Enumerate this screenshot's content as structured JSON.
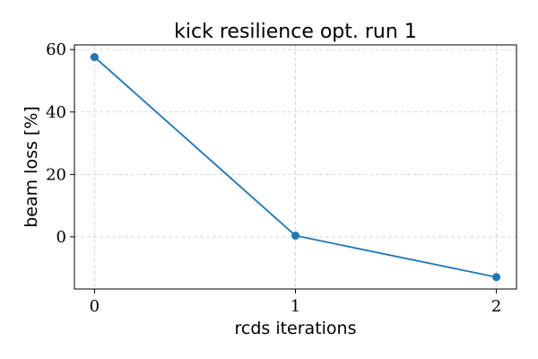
{
  "chart_data": {
    "type": "line",
    "title": "kick resilience opt. run 1",
    "xlabel": "rcds iterations",
    "ylabel": "beam loss [%]",
    "x": [
      0,
      1,
      2
    ],
    "series": [
      {
        "values": [
          57.6,
          0.4,
          -12.9
        ],
        "color": "#1f77b4"
      }
    ],
    "xlim": [
      -0.1,
      2.1
    ],
    "ylim": [
      -16.7,
      61.5
    ],
    "xticks": [
      0,
      1,
      2
    ],
    "yticks": [
      0,
      20,
      40,
      60
    ],
    "xtick_labels": [
      "0",
      "1",
      "2"
    ],
    "ytick_labels": [
      "0",
      "20",
      "40",
      "60"
    ],
    "grid": true,
    "grid_style": "dashed",
    "grid_color": "#cccccc",
    "markers": "circle",
    "legend": false
  }
}
